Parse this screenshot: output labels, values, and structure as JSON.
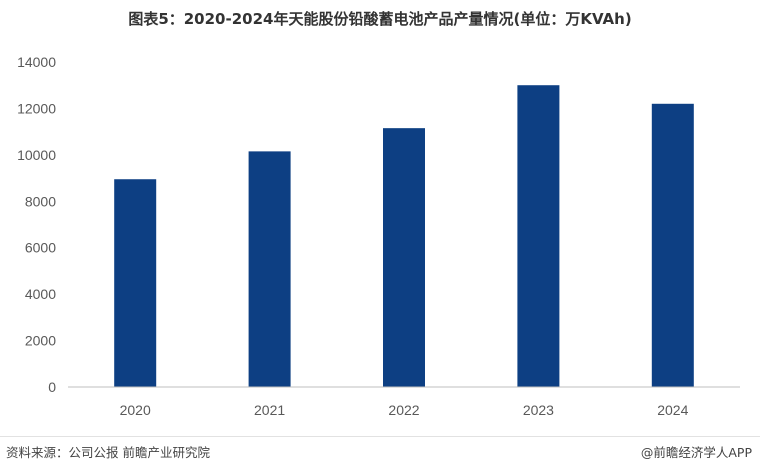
{
  "title": "图表5：2020-2024年天能股份铅酸蓄电池产品产量情况(单位：万KVAh)",
  "footer": {
    "source": "资料来源：公司公报 前瞻产业研究院",
    "brand": "@前瞻经济学人APP"
  },
  "colors": {
    "bar": "#0d3f83",
    "axis": "#bfbfbf",
    "tick_text": "#595959"
  },
  "chart_data": {
    "type": "bar",
    "title": "图表5：2020-2024年天能股份铅酸蓄电池产品产量情况(单位：万KVAh)",
    "categories": [
      "2020",
      "2021",
      "2022",
      "2023",
      "2024"
    ],
    "series": [
      {
        "values": [
          8950,
          10150,
          11150,
          13000,
          12200
        ]
      }
    ],
    "ylim": [
      0,
      14000
    ],
    "yticks": [
      0,
      2000,
      4000,
      6000,
      8000,
      10000,
      12000,
      14000
    ],
    "grid": false,
    "legend": "none"
  }
}
